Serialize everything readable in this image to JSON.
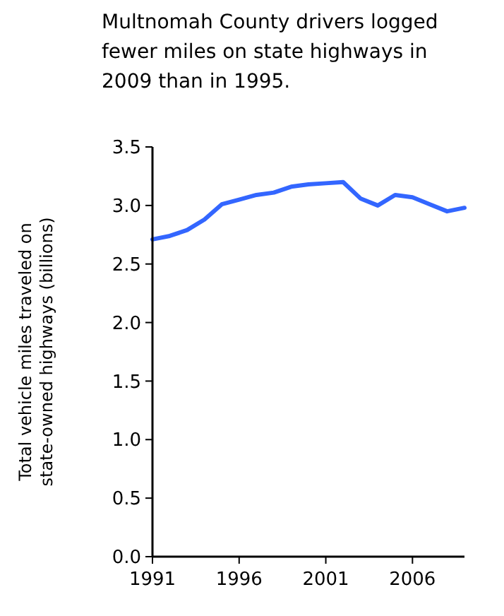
{
  "chart_data": {
    "type": "line",
    "title": "Multnomah County drivers logged fewer miles on state highways in 2009 than in 1995.",
    "ylabel": "Total vehicle miles traveled on state-owned highways (billions)",
    "x": [
      1991,
      1992,
      1993,
      1994,
      1995,
      1996,
      1997,
      1998,
      1999,
      2000,
      2001,
      2002,
      2003,
      2004,
      2005,
      2006,
      2007,
      2008,
      2009
    ],
    "series": [
      {
        "color": "#3366ff",
        "values": [
          2.71,
          2.74,
          2.79,
          2.88,
          3.01,
          3.05,
          3.09,
          3.11,
          3.16,
          3.18,
          3.19,
          3.2,
          3.06,
          3.0,
          3.09,
          3.07,
          3.01,
          2.95,
          2.98
        ]
      }
    ],
    "xlim": [
      1991,
      2009
    ],
    "xticks": [
      1991,
      1996,
      2001,
      2006
    ],
    "ylim": [
      0,
      3.5
    ],
    "yticks": [
      {
        "value": 0,
        "label": "0.0"
      },
      {
        "value": 0.5,
        "label": "0.5"
      },
      {
        "value": 1,
        "label": "1.0"
      },
      {
        "value": 1.5,
        "label": "1.5"
      },
      {
        "value": 2,
        "label": "2.0"
      },
      {
        "value": 2.5,
        "label": "2.5"
      },
      {
        "value": 3,
        "label": "3.0"
      },
      {
        "value": 3.5,
        "label": "3.5"
      }
    ],
    "grid": false,
    "marker": "none",
    "line_style": "solid"
  }
}
